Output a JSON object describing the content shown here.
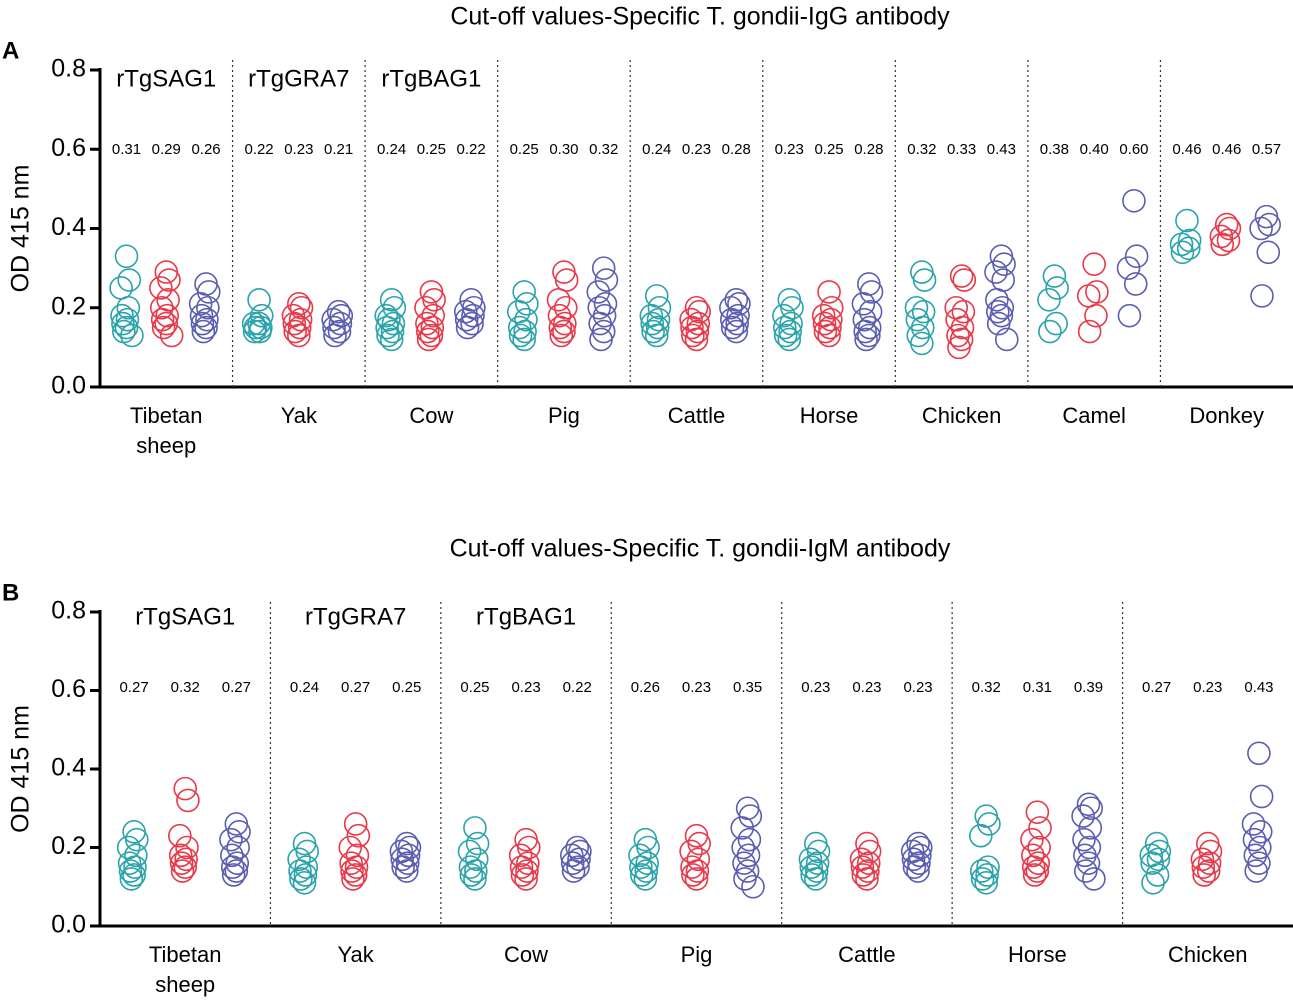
{
  "chart_data": [
    {
      "type": "strip",
      "panel": "A",
      "title": "Cut-off values-Specific T. gondii-IgG antibody",
      "ylabel": "OD 415 nm",
      "ylim": [
        0,
        0.8
      ],
      "yticks": [
        {
          "value": 0,
          "label": "0.0"
        },
        {
          "value": 0.2,
          "label": "0.2"
        },
        {
          "value": 0.4,
          "label": "0.4"
        },
        {
          "value": 0.6,
          "label": "0.6"
        },
        {
          "value": 0.8,
          "label": "0.8"
        }
      ],
      "categories": [
        "Tibetan sheep",
        "Yak",
        "Cow",
        "Pig",
        "Cattle",
        "Horse",
        "Chicken",
        "Camel",
        "Donkey"
      ],
      "series": [
        {
          "name": "rTgSAG1",
          "color": "#2aa3aa",
          "cutoffs": [
            "0.31",
            "0.22",
            "0.24",
            "0.25",
            "0.24",
            "0.23",
            "0.32",
            "0.38",
            "0.46"
          ],
          "values": [
            [
              0.33,
              0.27,
              0.25,
              0.2,
              0.18,
              0.17,
              0.16,
              0.15,
              0.14,
              0.13
            ],
            [
              0.22,
              0.18,
              0.16,
              0.15,
              0.14,
              0.14,
              0.15,
              0.16
            ],
            [
              0.22,
              0.2,
              0.18,
              0.16,
              0.15,
              0.14,
              0.13,
              0.12,
              0.17
            ],
            [
              0.24,
              0.21,
              0.19,
              0.17,
              0.15,
              0.14,
              0.13,
              0.12
            ],
            [
              0.23,
              0.2,
              0.18,
              0.17,
              0.16,
              0.15,
              0.14,
              0.13
            ],
            [
              0.22,
              0.2,
              0.18,
              0.16,
              0.15,
              0.14,
              0.13,
              0.12
            ],
            [
              0.29,
              0.27,
              0.2,
              0.19,
              0.17,
              0.15,
              0.13,
              0.11
            ],
            [
              0.28,
              0.25,
              0.22,
              0.16,
              0.14
            ],
            [
              0.42,
              0.37,
              0.36,
              0.35,
              0.34
            ]
          ]
        },
        {
          "name": "rTgGRA7",
          "color": "#e8394a",
          "cutoffs": [
            "0.29",
            "0.23",
            "0.25",
            "0.30",
            "0.23",
            "0.25",
            "0.33",
            "0.40",
            "0.46"
          ],
          "values": [
            [
              0.29,
              0.27,
              0.25,
              0.22,
              0.2,
              0.18,
              0.17,
              0.16,
              0.15,
              0.13
            ],
            [
              0.21,
              0.2,
              0.18,
              0.17,
              0.16,
              0.15,
              0.14,
              0.13
            ],
            [
              0.24,
              0.22,
              0.2,
              0.18,
              0.16,
              0.15,
              0.14,
              0.13,
              0.12
            ],
            [
              0.29,
              0.27,
              0.22,
              0.2,
              0.18,
              0.16,
              0.15,
              0.14,
              0.13
            ],
            [
              0.2,
              0.19,
              0.17,
              0.16,
              0.15,
              0.14,
              0.13,
              0.12
            ],
            [
              0.24,
              0.2,
              0.18,
              0.17,
              0.16,
              0.15,
              0.14,
              0.13
            ],
            [
              0.28,
              0.27,
              0.2,
              0.19,
              0.17,
              0.15,
              0.13,
              0.12,
              0.1
            ],
            [
              0.31,
              0.24,
              0.23,
              0.18,
              0.14
            ],
            [
              0.41,
              0.4,
              0.38,
              0.37,
              0.36
            ]
          ]
        },
        {
          "name": "rTgBAG1",
          "color": "#5a5eb0",
          "cutoffs": [
            "0.26",
            "0.21",
            "0.22",
            "0.32",
            "0.28",
            "0.28",
            "0.43",
            "0.60",
            "0.57"
          ],
          "values": [
            [
              0.26,
              0.24,
              0.21,
              0.2,
              0.18,
              0.17,
              0.16,
              0.15,
              0.14
            ],
            [
              0.19,
              0.18,
              0.17,
              0.16,
              0.15,
              0.14,
              0.13
            ],
            [
              0.22,
              0.2,
              0.19,
              0.18,
              0.17,
              0.16,
              0.15
            ],
            [
              0.3,
              0.27,
              0.24,
              0.21,
              0.2,
              0.18,
              0.16,
              0.14,
              0.12
            ],
            [
              0.22,
              0.21,
              0.2,
              0.18,
              0.17,
              0.16,
              0.15,
              0.14
            ],
            [
              0.26,
              0.24,
              0.21,
              0.19,
              0.17,
              0.15,
              0.14,
              0.13,
              0.12
            ],
            [
              0.33,
              0.31,
              0.29,
              0.27,
              0.22,
              0.2,
              0.19,
              0.18,
              0.16,
              0.12
            ],
            [
              0.47,
              0.33,
              0.3,
              0.26,
              0.18
            ],
            [
              0.43,
              0.41,
              0.4,
              0.34,
              0.23
            ]
          ]
        }
      ]
    },
    {
      "type": "strip",
      "panel": "B",
      "title": "Cut-off values-Specific T. gondii-IgM antibody",
      "ylabel": "OD 415 nm",
      "ylim": [
        0,
        0.8
      ],
      "yticks": [
        {
          "value": 0,
          "label": "0.0"
        },
        {
          "value": 0.2,
          "label": "0.2"
        },
        {
          "value": 0.4,
          "label": "0.4"
        },
        {
          "value": 0.6,
          "label": "0.6"
        },
        {
          "value": 0.8,
          "label": "0.8"
        }
      ],
      "categories": [
        "Tibetan sheep",
        "Yak",
        "Cow",
        "Pig",
        "Cattle",
        "Horse",
        "Chicken"
      ],
      "series": [
        {
          "name": "rTgSAG1",
          "color": "#2aa3aa",
          "cutoffs": [
            "0.27",
            "0.24",
            "0.25",
            "0.26",
            "0.23",
            "0.32",
            "0.27"
          ],
          "values": [
            [
              0.24,
              0.22,
              0.2,
              0.18,
              0.16,
              0.15,
              0.14,
              0.13,
              0.12
            ],
            [
              0.21,
              0.19,
              0.17,
              0.15,
              0.14,
              0.13,
              0.12,
              0.11
            ],
            [
              0.25,
              0.21,
              0.19,
              0.17,
              0.15,
              0.14,
              0.13,
              0.12
            ],
            [
              0.22,
              0.2,
              0.18,
              0.16,
              0.15,
              0.14,
              0.13,
              0.12
            ],
            [
              0.21,
              0.19,
              0.17,
              0.16,
              0.15,
              0.14,
              0.13,
              0.12
            ],
            [
              0.28,
              0.26,
              0.23,
              0.15,
              0.14,
              0.13,
              0.12,
              0.11
            ],
            [
              0.21,
              0.19,
              0.18,
              0.17,
              0.16,
              0.13,
              0.11
            ]
          ]
        },
        {
          "name": "rTgGRA7",
          "color": "#e8394a",
          "cutoffs": [
            "0.32",
            "0.27",
            "0.23",
            "0.23",
            "0.23",
            "0.31",
            "0.23"
          ],
          "values": [
            [
              0.35,
              0.32,
              0.23,
              0.2,
              0.18,
              0.17,
              0.16,
              0.15,
              0.14
            ],
            [
              0.26,
              0.23,
              0.2,
              0.18,
              0.16,
              0.15,
              0.14,
              0.13,
              0.12
            ],
            [
              0.22,
              0.2,
              0.18,
              0.16,
              0.15,
              0.14,
              0.13,
              0.12
            ],
            [
              0.23,
              0.21,
              0.19,
              0.17,
              0.15,
              0.14,
              0.13,
              0.12
            ],
            [
              0.21,
              0.19,
              0.17,
              0.16,
              0.15,
              0.14,
              0.13,
              0.12
            ],
            [
              0.29,
              0.25,
              0.22,
              0.2,
              0.18,
              0.16,
              0.15,
              0.14,
              0.13
            ],
            [
              0.21,
              0.19,
              0.17,
              0.16,
              0.15,
              0.14,
              0.13
            ]
          ]
        },
        {
          "name": "rTgBAG1",
          "color": "#5a5eb0",
          "cutoffs": [
            "0.27",
            "0.25",
            "0.22",
            "0.35",
            "0.23",
            "0.39",
            "0.43"
          ],
          "values": [
            [
              0.26,
              0.24,
              0.22,
              0.2,
              0.18,
              0.16,
              0.15,
              0.14,
              0.13
            ],
            [
              0.21,
              0.2,
              0.19,
              0.18,
              0.17,
              0.16,
              0.15,
              0.14
            ],
            [
              0.2,
              0.19,
              0.18,
              0.17,
              0.16,
              0.15,
              0.14
            ],
            [
              0.3,
              0.28,
              0.25,
              0.22,
              0.2,
              0.18,
              0.16,
              0.14,
              0.12,
              0.1
            ],
            [
              0.21,
              0.2,
              0.19,
              0.18,
              0.17,
              0.16,
              0.15,
              0.14
            ],
            [
              0.31,
              0.3,
              0.28,
              0.25,
              0.22,
              0.2,
              0.18,
              0.16,
              0.14,
              0.12
            ],
            [
              0.44,
              0.33,
              0.26,
              0.24,
              0.22,
              0.2,
              0.18,
              0.16,
              0.14
            ]
          ]
        }
      ]
    }
  ]
}
